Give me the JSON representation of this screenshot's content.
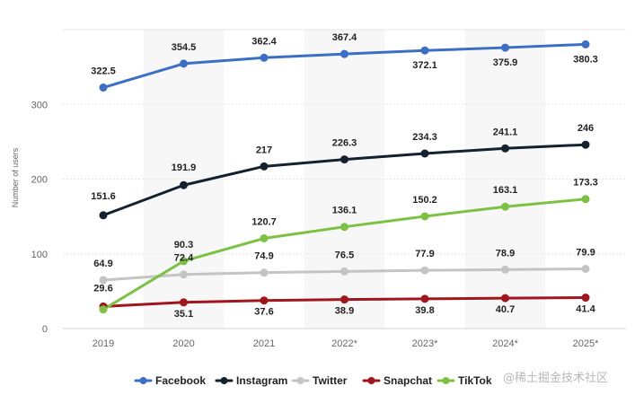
{
  "chart_data": {
    "type": "line",
    "title": "",
    "xlabel": "",
    "ylabel": "Number of users",
    "ylim": [
      0,
      400
    ],
    "yticks": [
      0,
      100,
      200,
      300
    ],
    "categories": [
      "2019",
      "2020",
      "2021",
      "2022*",
      "2023*",
      "2024*",
      "2025*"
    ],
    "series": [
      {
        "name": "Facebook",
        "color": "#3b6fc6",
        "values": [
          322.5,
          354.5,
          362.4,
          367.4,
          372.1,
          375.9,
          380.3
        ],
        "labels": [
          "322.5",
          "354.5",
          "362.4",
          "367.4",
          "372.1",
          "375.9",
          "380.3"
        ]
      },
      {
        "name": "Instagram",
        "color": "#14212f",
        "values": [
          151.6,
          191.9,
          217,
          226.3,
          234.3,
          241.1,
          246
        ],
        "labels": [
          "151.6",
          "191.9",
          "217",
          "226.3",
          "234.3",
          "241.1",
          "246"
        ]
      },
      {
        "name": "Twitter",
        "color": "#c4c4c4",
        "values": [
          64.9,
          72.4,
          74.9,
          76.5,
          77.9,
          78.9,
          79.9
        ],
        "labels": [
          "64.9",
          "72.4",
          "74.9",
          "76.5",
          "77.9",
          "78.9",
          "79.9"
        ]
      },
      {
        "name": "Snapchat",
        "color": "#a1161c",
        "values": [
          29.6,
          35.1,
          37.6,
          38.9,
          39.8,
          40.7,
          41.4
        ],
        "labels": [
          "29.6",
          "35.1",
          "37.6",
          "38.9",
          "39.8",
          "40.7",
          "41.4"
        ]
      },
      {
        "name": "TikTok",
        "color": "#7cc242",
        "values": [
          25.6,
          90.3,
          120.7,
          136.1,
          150.2,
          163.1,
          173.3
        ],
        "labels": [
          "",
          "90.3",
          "120.7",
          "136.1",
          "150.2",
          "163.1",
          "173.3"
        ]
      }
    ],
    "legend": {
      "position": "bottom",
      "items": [
        "Facebook",
        "Instagram",
        "Twitter",
        "Snapchat",
        "TikTok"
      ]
    },
    "grid": true
  },
  "watermark": "@稀土掘金技术社区"
}
